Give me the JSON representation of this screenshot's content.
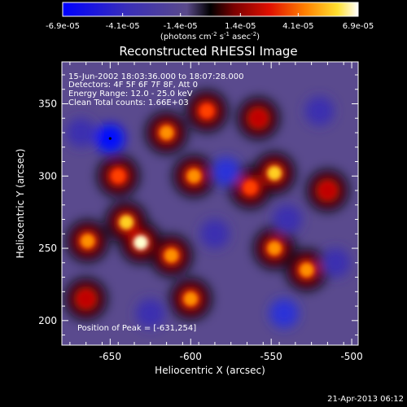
{
  "chart_data": {
    "type": "heatmap",
    "title": "Reconstructed RHESSI Image",
    "xlabel": "Heliocentric X (arcsec)",
    "ylabel": "Heliocentric Y (arcsec)",
    "xlim": [
      -680,
      -496
    ],
    "ylim": [
      183,
      379
    ],
    "x_ticks": [
      -650,
      -600,
      -550,
      -500
    ],
    "y_ticks": [
      200,
      250,
      300,
      350
    ],
    "colorbar": {
      "ticks": [
        "-6.9e-05",
        "-4.1e-05",
        "-1.4e-05",
        "1.4e-05",
        "4.1e-05",
        "6.9e-05"
      ],
      "tick_values": [
        -6.9e-05,
        -4.1e-05,
        -1.4e-05,
        1.4e-05,
        4.1e-05,
        6.9e-05
      ],
      "range": [
        -6.9e-05,
        6.9e-05
      ],
      "unit_main": "(photons cm",
      "unit_exp1": "-2",
      "unit_mid": " s",
      "unit_exp2": "-1",
      "unit_end": " asec",
      "unit_exp3": "-2",
      "unit_close": ")"
    },
    "annotations": {
      "time": "15-Jun-2002 18:03:36.000 to 18:07:28.000",
      "detectors": "Detectors: 4F 5F 6F 7F 8F, Att 0",
      "energy": "Energy Range: 12.0 - 25.0 keV",
      "clean": "Clean     Total counts: 1.66E+03",
      "peak": "Position of Peak = [-631,254]"
    },
    "peak_position": [
      -631,
      254
    ],
    "bright_sources": [
      {
        "x": -664,
        "y": 255,
        "value": 5.5e-05
      },
      {
        "x": -640,
        "y": 268,
        "value": 6.2e-05
      },
      {
        "x": -631,
        "y": 254,
        "value": 6.9e-05
      },
      {
        "x": -612,
        "y": 245,
        "value": 5e-05
      },
      {
        "x": -645,
        "y": 300,
        "value": 3.5e-05
      },
      {
        "x": -598,
        "y": 300,
        "value": 5.5e-05
      },
      {
        "x": -600,
        "y": 215,
        "value": 5e-05
      },
      {
        "x": -615,
        "y": 330,
        "value": 4.5e-05
      },
      {
        "x": -563,
        "y": 292,
        "value": 4e-05
      },
      {
        "x": -548,
        "y": 302,
        "value": 6e-05
      },
      {
        "x": -548,
        "y": 250,
        "value": 5e-05
      },
      {
        "x": -528,
        "y": 235,
        "value": 4.5e-05
      },
      {
        "x": -590,
        "y": 345,
        "value": 4e-05
      },
      {
        "x": -558,
        "y": 340,
        "value": 3e-05
      },
      {
        "x": -665,
        "y": 215,
        "value": 3e-05
      },
      {
        "x": -515,
        "y": 290,
        "value": 2.5e-05
      }
    ],
    "dark_sources": [
      {
        "x": -650,
        "y": 326,
        "value": -6.9e-05
      },
      {
        "x": -578,
        "y": 303,
        "value": -5e-05
      },
      {
        "x": -542,
        "y": 205,
        "value": -5e-05
      },
      {
        "x": -520,
        "y": 345,
        "value": -4e-05
      },
      {
        "x": -585,
        "y": 260,
        "value": -3.5e-05
      },
      {
        "x": -540,
        "y": 270,
        "value": -4e-05
      },
      {
        "x": -668,
        "y": 330,
        "value": -3.5e-05
      },
      {
        "x": -625,
        "y": 205,
        "value": -3e-05
      },
      {
        "x": -510,
        "y": 240,
        "value": -3.5e-05
      }
    ],
    "footer_date": "21-Apr-2013 06:12"
  }
}
